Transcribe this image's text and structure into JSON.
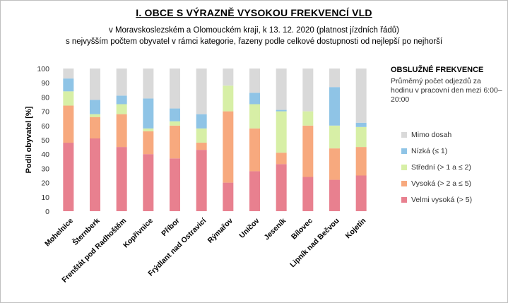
{
  "header": {
    "title": "I. OBCE S VÝRAZNĚ VYSOKOU FREKVENCÍ VLD",
    "subtitle1": "v Moravskoslezském a Olomouckém kraji, k 13. 12. 2020 (platnost jízdních řádů)",
    "subtitle2": "s nejvyšším počtem  obyvatel v rámci kategorie, řazeny podle celkové dostupnosti od nejlepší po nejhorší"
  },
  "side": {
    "title": "OBSLUŽNÉ FREKVENCE",
    "desc": "Průměrný počet odjezdů za hodinu v pracovní den mezi 6:00–20:00"
  },
  "legend": [
    {
      "label": "Mimo dosah",
      "color": "#d9d9d9"
    },
    {
      "label": "Nízká (≤ 1)",
      "color": "#8fc4e6"
    },
    {
      "label": "Střední (> 1 a ≤ 2)",
      "color": "#d7efa6"
    },
    {
      "label": "Vysoká (> 2 a ≤ 5)",
      "color": "#f7a97e"
    },
    {
      "label": "Velmi vysoká (> 5)",
      "color": "#e8808f"
    }
  ],
  "chart_data": {
    "type": "bar",
    "stacked": true,
    "ylabel": "Podíl obyvatel [%]",
    "ylim": [
      0,
      100
    ],
    "yticks": [
      0,
      10,
      20,
      30,
      40,
      50,
      60,
      70,
      80,
      90,
      100
    ],
    "grid": false,
    "legend_position": "right",
    "categories": [
      "Mohelnice",
      "Šternberk",
      "Frenštát pod Radhoštěm",
      "Kopřivnice",
      "Příbor",
      "Frýdlant nad Ostravicí",
      "Rýmařov",
      "Uničov",
      "Jeseník",
      "Bílovec",
      "Lipník nad Bečvou",
      "Kojetín"
    ],
    "series": [
      {
        "name": "Velmi vysoká (> 5)",
        "color": "#e8808f",
        "values": [
          48,
          51,
          45,
          40,
          37,
          43,
          20,
          28,
          33,
          24,
          22,
          25
        ]
      },
      {
        "name": "Vysoká (> 2 a ≤ 5)",
        "color": "#f7a97e",
        "values": [
          26,
          15,
          23,
          16,
          23,
          5,
          50,
          30,
          8,
          36,
          22,
          20
        ]
      },
      {
        "name": "Střední (> 1 a ≤ 2)",
        "color": "#d7efa6",
        "values": [
          10,
          2,
          7,
          2,
          3,
          10,
          18,
          17,
          29,
          10,
          16,
          14
        ]
      },
      {
        "name": "Nízká (≤ 1)",
        "color": "#8fc4e6",
        "values": [
          9,
          10,
          6,
          21,
          9,
          10,
          0,
          8,
          1,
          0,
          27,
          3
        ]
      },
      {
        "name": "Mimo dosah",
        "color": "#d9d9d9",
        "values": [
          7,
          22,
          19,
          21,
          28,
          32,
          12,
          17,
          29,
          30,
          13,
          38
        ]
      }
    ]
  }
}
